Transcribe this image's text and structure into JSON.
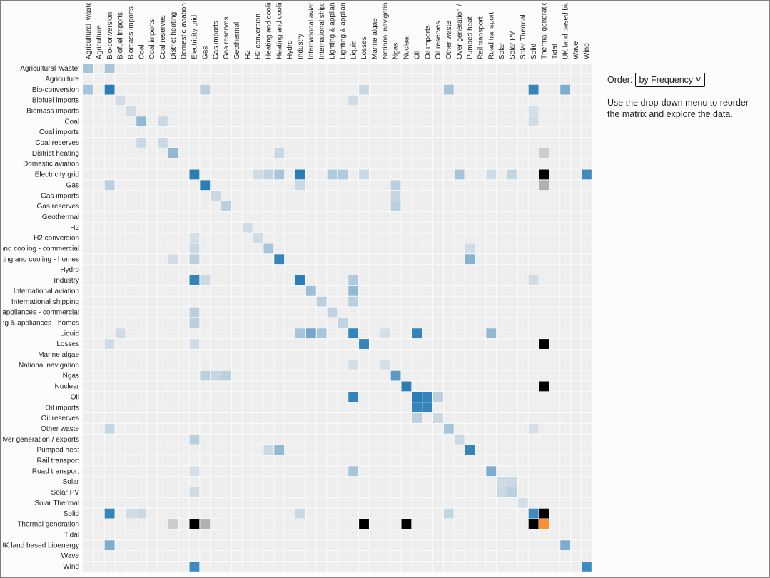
{
  "controls": {
    "order_label": "Order:",
    "order_value": "by Frequency",
    "hint": "Use the drop-down menu to reorder the matrix and explore the data."
  },
  "chart_data": {
    "type": "heatmap",
    "title": "",
    "labels": [
      "Agricultural 'waste'",
      "Agriculture",
      "Bio-conversion",
      "Biofuel imports",
      "Biomass imports",
      "Coal",
      "Coal imports",
      "Coal reserves",
      "District heating",
      "Domestic aviation",
      "Electricity grid",
      "Gas",
      "Gas imports",
      "Gas reserves",
      "Geothermal",
      "H2",
      "H2 conversion",
      "Heating and cooling - commercial",
      "Heating and cooling - homes",
      "Hydro",
      "Industry",
      "International aviation",
      "International shipping",
      "Lighting & appliances - commercial",
      "Lighting & appliances - homes",
      "Liquid",
      "Losses",
      "Marine algae",
      "National navigation",
      "Ngas",
      "Nuclear",
      "Oil",
      "Oil imports",
      "Oil reserves",
      "Other waste",
      "Over generation / exports",
      "Pumped heat",
      "Rail transport",
      "Road transport",
      "Solar",
      "Solar PV",
      "Solar Thermal",
      "Solid",
      "Thermal generation",
      "Tidal",
      "UK land based bioenergy",
      "Wave",
      "Wind"
    ],
    "colors": {
      "background_cell": "#eeeeee",
      "group_blue": "#1f77b4",
      "group_gray": "#7f7f7f",
      "group_black": "#000000",
      "group_orange": "#ff7f0e"
    },
    "legend": "none",
    "cells": [
      [
        0,
        0,
        0.35,
        "b"
      ],
      [
        0,
        2,
        0.35,
        "b"
      ],
      [
        2,
        0,
        0.35,
        "b"
      ],
      [
        2,
        2,
        0.95,
        "b"
      ],
      [
        2,
        11,
        0.25,
        "b"
      ],
      [
        2,
        26,
        0.18,
        "b"
      ],
      [
        2,
        34,
        0.35,
        "b"
      ],
      [
        2,
        42,
        0.9,
        "b"
      ],
      [
        2,
        45,
        0.55,
        "b"
      ],
      [
        3,
        3,
        0.15,
        "b"
      ],
      [
        3,
        25,
        0.15,
        "b"
      ],
      [
        4,
        4,
        0.15,
        "b"
      ],
      [
        4,
        42,
        0.12,
        "b"
      ],
      [
        5,
        5,
        0.45,
        "b"
      ],
      [
        5,
        7,
        0.18,
        "b"
      ],
      [
        5,
        42,
        0.15,
        "b"
      ],
      [
        7,
        5,
        0.18,
        "b"
      ],
      [
        7,
        7,
        0.18,
        "b"
      ],
      [
        8,
        8,
        0.45,
        "b"
      ],
      [
        8,
        18,
        0.18,
        "b"
      ],
      [
        8,
        43,
        0.3,
        "g"
      ],
      [
        10,
        10,
        0.95,
        "b"
      ],
      [
        10,
        16,
        0.15,
        "b"
      ],
      [
        10,
        17,
        0.22,
        "b"
      ],
      [
        10,
        18,
        0.35,
        "b"
      ],
      [
        10,
        20,
        0.95,
        "b"
      ],
      [
        10,
        23,
        0.3,
        "b"
      ],
      [
        10,
        24,
        0.3,
        "b"
      ],
      [
        10,
        26,
        0.18,
        "b"
      ],
      [
        10,
        35,
        0.35,
        "b"
      ],
      [
        10,
        38,
        0.15,
        "b"
      ],
      [
        10,
        40,
        0.2,
        "b"
      ],
      [
        10,
        43,
        1,
        "k"
      ],
      [
        10,
        47,
        0.85,
        "b"
      ],
      [
        11,
        2,
        0.25,
        "b"
      ],
      [
        11,
        11,
        0.95,
        "b"
      ],
      [
        11,
        20,
        0.18,
        "b"
      ],
      [
        11,
        29,
        0.25,
        "b"
      ],
      [
        11,
        43,
        0.55,
        "g"
      ],
      [
        12,
        12,
        0.18,
        "b"
      ],
      [
        12,
        29,
        0.2,
        "b"
      ],
      [
        13,
        13,
        0.25,
        "b"
      ],
      [
        13,
        29,
        0.25,
        "b"
      ],
      [
        15,
        15,
        0.15,
        "b"
      ],
      [
        16,
        10,
        0.12,
        "b"
      ],
      [
        16,
        16,
        0.15,
        "b"
      ],
      [
        17,
        10,
        0.18,
        "b"
      ],
      [
        17,
        17,
        0.35,
        "b"
      ],
      [
        17,
        36,
        0.15,
        "b"
      ],
      [
        18,
        8,
        0.15,
        "b"
      ],
      [
        18,
        10,
        0.25,
        "b"
      ],
      [
        18,
        18,
        0.9,
        "b"
      ],
      [
        18,
        36,
        0.5,
        "b"
      ],
      [
        20,
        10,
        0.9,
        "b"
      ],
      [
        20,
        11,
        0.18,
        "b"
      ],
      [
        20,
        20,
        0.95,
        "b"
      ],
      [
        20,
        25,
        0.3,
        "b"
      ],
      [
        20,
        42,
        0.15,
        "b"
      ],
      [
        21,
        21,
        0.4,
        "b"
      ],
      [
        21,
        25,
        0.45,
        "b"
      ],
      [
        22,
        22,
        0.25,
        "b"
      ],
      [
        22,
        25,
        0.25,
        "b"
      ],
      [
        23,
        10,
        0.25,
        "b"
      ],
      [
        23,
        23,
        0.22,
        "b"
      ],
      [
        24,
        10,
        0.25,
        "b"
      ],
      [
        24,
        24,
        0.22,
        "b"
      ],
      [
        25,
        3,
        0.15,
        "b"
      ],
      [
        25,
        20,
        0.35,
        "b"
      ],
      [
        25,
        21,
        0.6,
        "b"
      ],
      [
        25,
        22,
        0.35,
        "b"
      ],
      [
        25,
        25,
        0.9,
        "b"
      ],
      [
        25,
        28,
        0.12,
        "b"
      ],
      [
        25,
        31,
        0.9,
        "b"
      ],
      [
        25,
        38,
        0.45,
        "b"
      ],
      [
        26,
        2,
        0.15,
        "b"
      ],
      [
        26,
        10,
        0.15,
        "b"
      ],
      [
        26,
        26,
        0.9,
        "b"
      ],
      [
        26,
        43,
        1,
        "k"
      ],
      [
        28,
        25,
        0.12,
        "b"
      ],
      [
        28,
        28,
        0.12,
        "b"
      ],
      [
        29,
        11,
        0.25,
        "b"
      ],
      [
        29,
        12,
        0.2,
        "b"
      ],
      [
        29,
        13,
        0.25,
        "b"
      ],
      [
        29,
        29,
        0.7,
        "b"
      ],
      [
        30,
        30,
        0.95,
        "b"
      ],
      [
        30,
        43,
        1,
        "k"
      ],
      [
        31,
        25,
        0.9,
        "b"
      ],
      [
        31,
        31,
        0.95,
        "b"
      ],
      [
        31,
        32,
        0.9,
        "b"
      ],
      [
        31,
        33,
        0.25,
        "b"
      ],
      [
        32,
        31,
        0.9,
        "b"
      ],
      [
        32,
        32,
        0.9,
        "b"
      ],
      [
        33,
        31,
        0.25,
        "b"
      ],
      [
        33,
        33,
        0.18,
        "b"
      ],
      [
        34,
        2,
        0.2,
        "b"
      ],
      [
        34,
        34,
        0.35,
        "b"
      ],
      [
        34,
        42,
        0.12,
        "b"
      ],
      [
        35,
        10,
        0.25,
        "b"
      ],
      [
        35,
        35,
        0.18,
        "b"
      ],
      [
        36,
        17,
        0.18,
        "b"
      ],
      [
        36,
        18,
        0.45,
        "b"
      ],
      [
        36,
        36,
        0.9,
        "b"
      ],
      [
        38,
        10,
        0.12,
        "b"
      ],
      [
        38,
        25,
        0.35,
        "b"
      ],
      [
        38,
        38,
        0.55,
        "b"
      ],
      [
        39,
        39,
        0.15,
        "b"
      ],
      [
        39,
        40,
        0.18,
        "b"
      ],
      [
        40,
        10,
        0.15,
        "b"
      ],
      [
        40,
        39,
        0.18,
        "b"
      ],
      [
        40,
        40,
        0.25,
        "b"
      ],
      [
        41,
        41,
        0.12,
        "b"
      ],
      [
        42,
        2,
        0.9,
        "b"
      ],
      [
        42,
        4,
        0.15,
        "b"
      ],
      [
        42,
        5,
        0.18,
        "b"
      ],
      [
        42,
        20,
        0.18,
        "b"
      ],
      [
        42,
        34,
        0.2,
        "b"
      ],
      [
        42,
        42,
        0.85,
        "b"
      ],
      [
        42,
        43,
        1,
        "k"
      ],
      [
        43,
        8,
        0.3,
        "g"
      ],
      [
        43,
        10,
        1,
        "k"
      ],
      [
        43,
        11,
        0.55,
        "g"
      ],
      [
        43,
        26,
        1,
        "k"
      ],
      [
        43,
        30,
        1,
        "k"
      ],
      [
        43,
        42,
        1,
        "k"
      ],
      [
        43,
        43,
        0.85,
        "o"
      ],
      [
        45,
        2,
        0.55,
        "b"
      ],
      [
        45,
        45,
        0.55,
        "b"
      ],
      [
        47,
        10,
        0.85,
        "b"
      ],
      [
        47,
        47,
        0.85,
        "b"
      ]
    ]
  }
}
